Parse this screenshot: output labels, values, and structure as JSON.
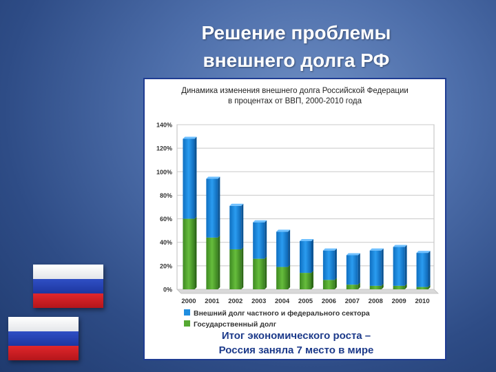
{
  "slide": {
    "title_line1": "Решение проблемы",
    "title_line2": "внешнего долга РФ",
    "caption_line1": "Итог экономического роста –",
    "caption_line2": "Россия заняла 7 место в мире"
  },
  "colors": {
    "background": "#3f5f9c",
    "private_series": "#1f8ee0",
    "state_series": "#55a832",
    "frame_border": "#1f3c92",
    "caption_text": "#1c3a8a"
  },
  "chart_data": {
    "type": "bar",
    "stacked": true,
    "title_line1": "Динамика изменения внешнего долга Российской Федерации",
    "title_line2": "в процентах от ВВП, 2000-2010 года",
    "categories": [
      "2000",
      "2001",
      "2002",
      "2003",
      "2004",
      "2005",
      "2006",
      "2007",
      "2008",
      "2009",
      "2010"
    ],
    "series": [
      {
        "name": "Государственный долг",
        "values": [
          60,
          44,
          34,
          26,
          19,
          14,
          8,
          4,
          3,
          3,
          2
        ]
      },
      {
        "name": "Внешний долг частного и федерального сектора",
        "values": [
          68,
          50,
          37,
          31,
          30,
          27,
          25,
          25,
          30,
          33,
          29
        ]
      }
    ],
    "ylim": [
      0,
      140
    ],
    "yticks": [
      "0%",
      "20%",
      "40%",
      "60%",
      "80%",
      "100%",
      "120%",
      "140%"
    ],
    "grid": true,
    "legend_position": "bottom"
  }
}
